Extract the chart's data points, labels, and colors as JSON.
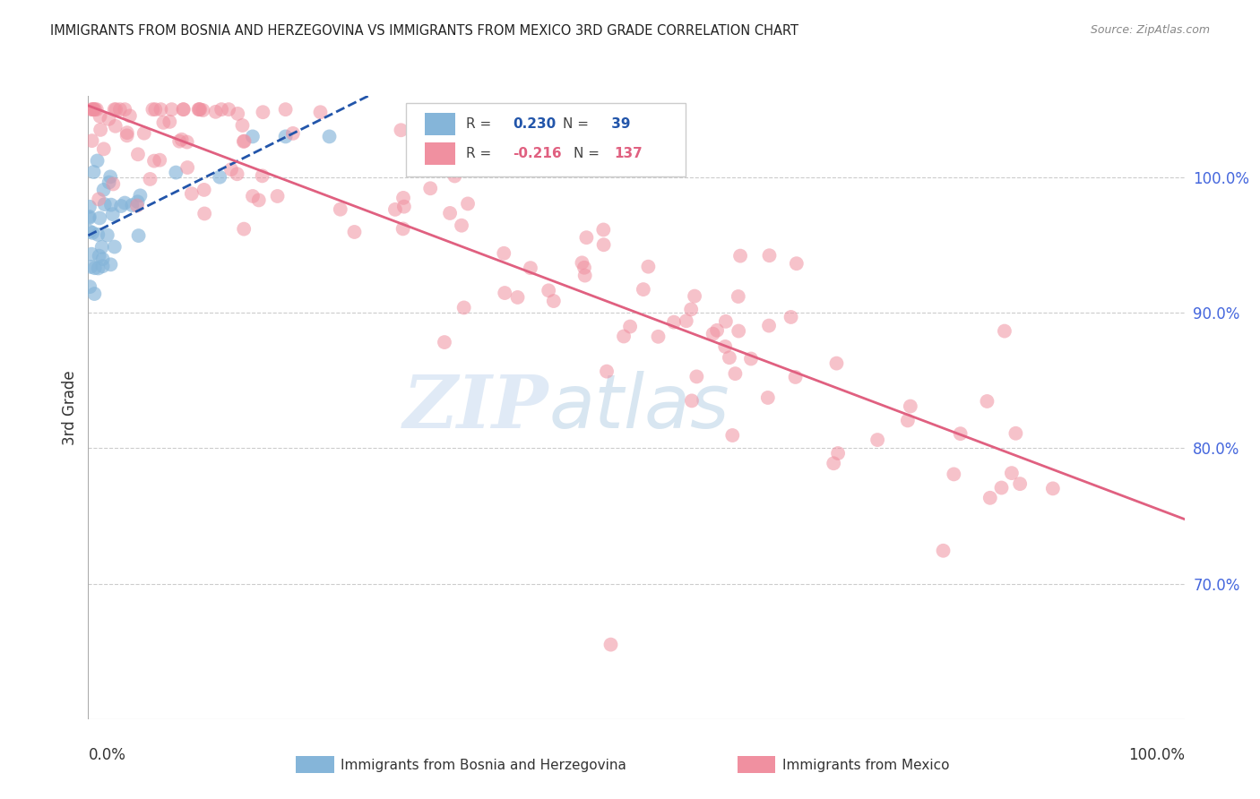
{
  "title": "IMMIGRANTS FROM BOSNIA AND HERZEGOVINA VS IMMIGRANTS FROM MEXICO 3RD GRADE CORRELATION CHART",
  "source": "Source: ZipAtlas.com",
  "ylabel": "3rd Grade",
  "bosnia_R": 0.23,
  "bosnia_N": 39,
  "mexico_R": -0.216,
  "mexico_N": 137,
  "bosnia_color": "#85b5d9",
  "mexico_color": "#f090a0",
  "bosnia_line_color": "#2255aa",
  "mexico_line_color": "#e06080",
  "right_ytick_labels": [
    "100.0%",
    "90.0%",
    "80.0%",
    "70.0%"
  ],
  "right_ytick_values": [
    1.0,
    0.9,
    0.8,
    0.7
  ],
  "background_color": "#ffffff",
  "grid_color": "#cccccc",
  "right_label_color": "#4466dd",
  "title_color": "#222222",
  "xlim": [
    0.0,
    1.0
  ],
  "ylim": [
    0.6,
    1.06
  ]
}
